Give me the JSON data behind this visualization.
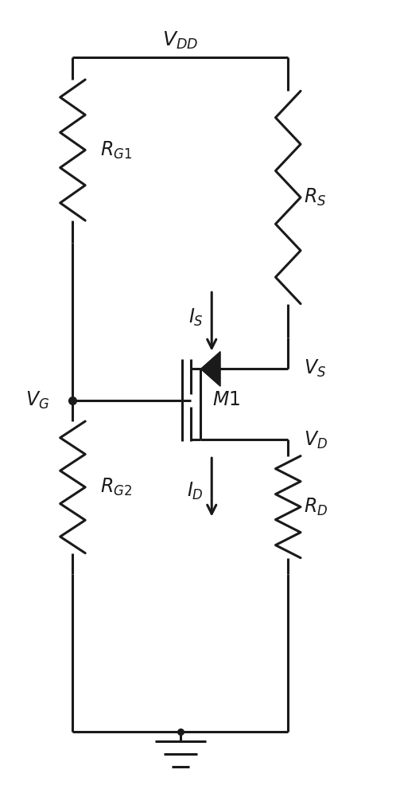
{
  "background_color": "#ffffff",
  "line_color": "#1a1a1a",
  "line_width": 2.2,
  "fig_width": 4.98,
  "fig_height": 9.96,
  "dpi": 100,
  "xl": 0.18,
  "xr": 0.73,
  "yt": 0.93,
  "yb": 0.075,
  "yg": 0.495,
  "ym_s": 0.535,
  "ym_d": 0.445,
  "xmosfet": 0.5,
  "resistor_amplitude": 0.032,
  "resistor_n_zigs": 8
}
